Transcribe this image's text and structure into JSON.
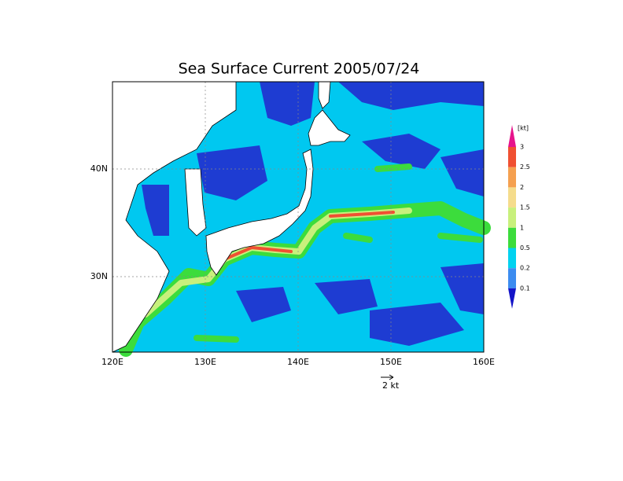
{
  "title": "Sea Surface Current  2005/07/24",
  "x_labels": [
    "120E",
    "130E",
    "140E",
    "150E",
    "160E"
  ],
  "y_labels": [
    "30N",
    "40N"
  ],
  "colorbar": {
    "unit": "[kt]",
    "levels": [
      3,
      2.5,
      2,
      1.5,
      1,
      0.5,
      0.2,
      0.1
    ],
    "colors": [
      "#e6148c",
      "#f05032",
      "#f5a050",
      "#f5dc8c",
      "#c8f07c",
      "#3cdc3c",
      "#00d2f0",
      "#3c8cf0",
      "#1414c8"
    ]
  },
  "vector_reference": "2 kt"
}
